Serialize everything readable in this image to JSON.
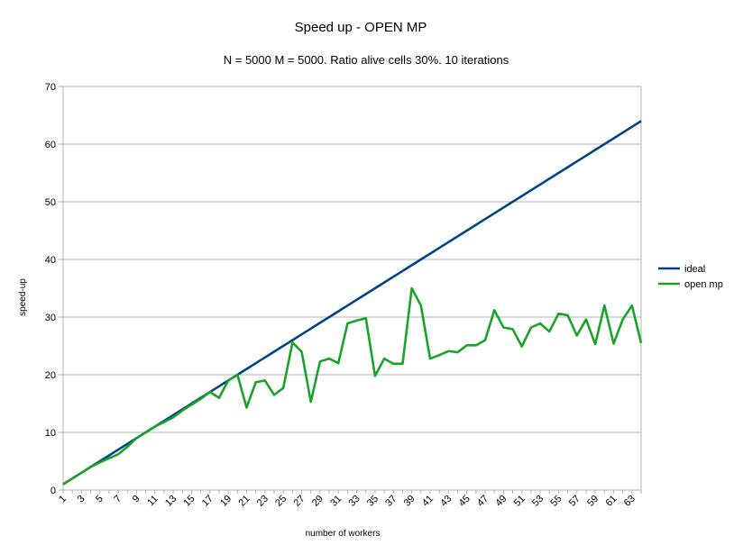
{
  "chart_data": {
    "type": "line",
    "title": "Speed up - OPEN MP",
    "subtitle": "N = 5000 M = 5000. Ratio alive cells 30%. 10 iterations",
    "xlabel": "number of workers",
    "ylabel": "speed-up",
    "ylim": [
      0,
      70
    ],
    "yticks": [
      0,
      10,
      20,
      30,
      40,
      50,
      60,
      70
    ],
    "x": [
      1,
      2,
      3,
      4,
      5,
      6,
      7,
      8,
      9,
      10,
      11,
      12,
      13,
      14,
      15,
      16,
      17,
      18,
      19,
      20,
      21,
      22,
      23,
      24,
      25,
      26,
      27,
      28,
      29,
      30,
      31,
      32,
      33,
      34,
      35,
      36,
      37,
      38,
      39,
      40,
      41,
      42,
      43,
      44,
      45,
      46,
      47,
      48,
      49,
      50,
      51,
      52,
      53,
      54,
      55,
      56,
      57,
      58,
      59,
      60,
      61,
      62,
      63,
      64
    ],
    "xtick_labels": [
      "1",
      "3",
      "5",
      "7",
      "9",
      "11",
      "13",
      "15",
      "17",
      "19",
      "21",
      "23",
      "25",
      "27",
      "29",
      "31",
      "33",
      "35",
      "37",
      "39",
      "41",
      "43",
      "45",
      "47",
      "49",
      "51",
      "53",
      "55",
      "57",
      "59",
      "61",
      "63"
    ],
    "grid": true,
    "legend": "right",
    "series": [
      {
        "name": "ideal",
        "color": "#004586",
        "values": [
          1,
          2,
          3,
          4,
          5,
          6,
          7,
          8,
          9,
          10,
          11,
          12,
          13,
          14,
          15,
          16,
          17,
          18,
          19,
          20,
          21,
          22,
          23,
          24,
          25,
          26,
          27,
          28,
          29,
          30,
          31,
          32,
          33,
          34,
          35,
          36,
          37,
          38,
          39,
          40,
          41,
          42,
          43,
          44,
          45,
          46,
          47,
          48,
          49,
          50,
          51,
          52,
          53,
          54,
          55,
          56,
          57,
          58,
          59,
          60,
          61,
          62,
          63,
          64
        ]
      },
      {
        "name": "open mp",
        "color": "#1aa329",
        "values": [
          1,
          2,
          3,
          4,
          4.8,
          5.5,
          6.2,
          7.5,
          9,
          10,
          11,
          11.8,
          12.6,
          13.8,
          14.8,
          15.8,
          17,
          16,
          19,
          20,
          14.3,
          18.7,
          19,
          16.5,
          17.7,
          25.6,
          24,
          15.3,
          22.3,
          22.8,
          22,
          28.9,
          29.4,
          29.8,
          19.8,
          22.8,
          21.9,
          21.9,
          35,
          32,
          22.8,
          23.4,
          24.1,
          23.9,
          25.1,
          25.1,
          26,
          31.2,
          28.2,
          27.9,
          24.9,
          28.2,
          28.9,
          27.5,
          30.6,
          30.3,
          26.8,
          29.6,
          25.3,
          32,
          25.4,
          29.6,
          32,
          25.5
        ]
      }
    ]
  }
}
